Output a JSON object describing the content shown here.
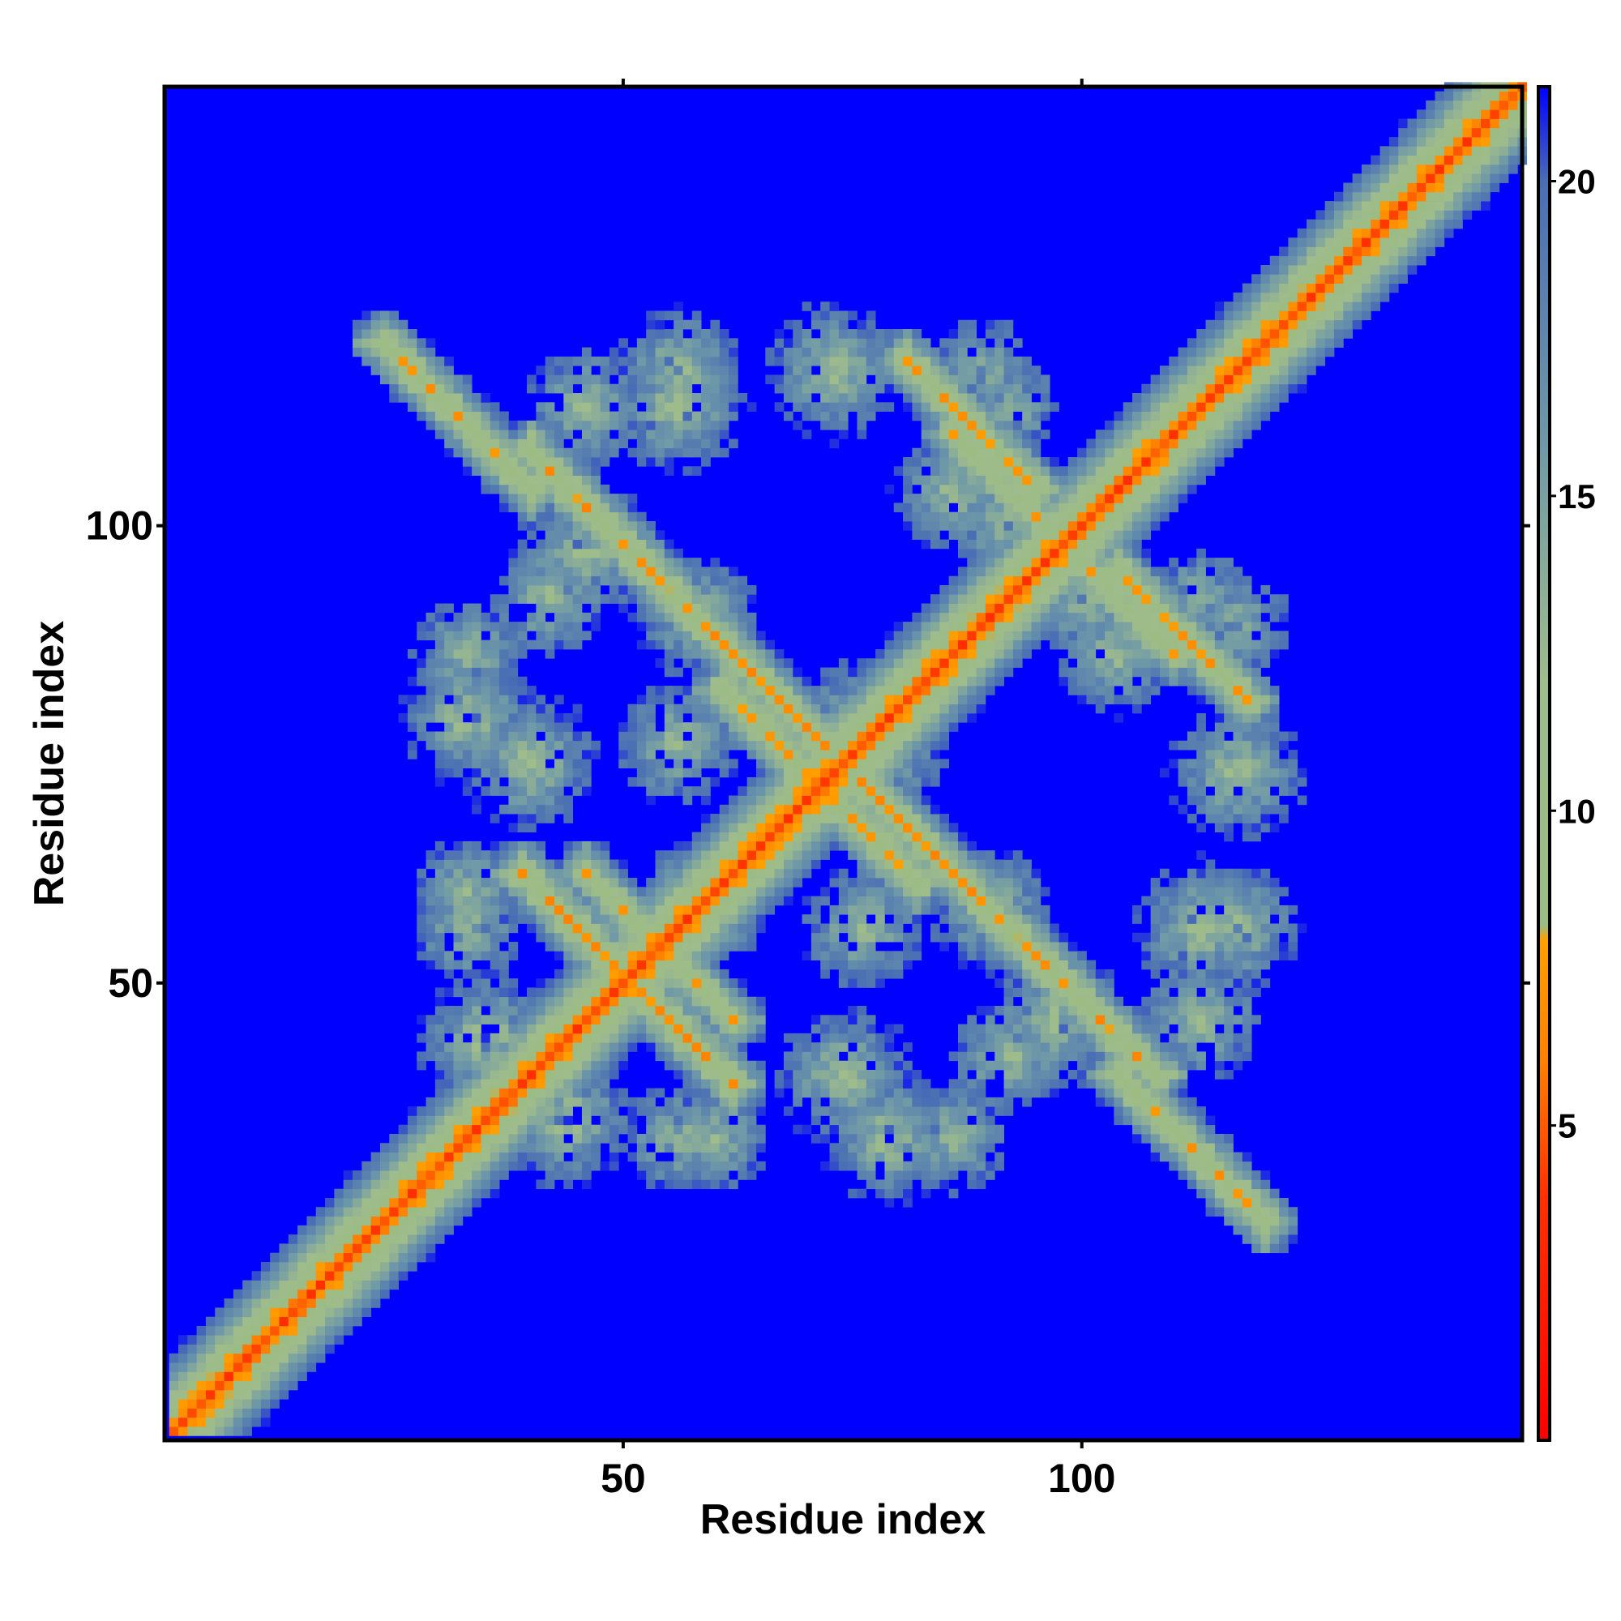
{
  "chart_data": {
    "type": "heatmap",
    "title": "",
    "xlabel": "Residue index",
    "ylabel": "Residue index",
    "xlim": [
      1,
      148
    ],
    "ylim": [
      1,
      148
    ],
    "x_ticks": [
      50,
      100
    ],
    "y_ticks": [
      50,
      100
    ],
    "grid": false,
    "matrix_size": 148,
    "colorbar": {
      "ticks": [
        5,
        10,
        15,
        20
      ],
      "range": [
        0,
        21.5
      ],
      "stops": [
        {
          "value": 0,
          "color": "#ff0000"
        },
        {
          "value": 4,
          "color": "#ff3000"
        },
        {
          "value": 6,
          "color": "#ff8000"
        },
        {
          "value": 8,
          "color": "#ffa000"
        },
        {
          "value": 8.1,
          "color": "#9cbc84"
        },
        {
          "value": 12,
          "color": "#9fbc8c"
        },
        {
          "value": 16,
          "color": "#6e98a8"
        },
        {
          "value": 20,
          "color": "#4a6eb4"
        },
        {
          "value": 21.5,
          "color": "#0000ff"
        }
      ]
    },
    "cutoff_value": 21,
    "background_color": "#0000ff",
    "contact_bands": [
      {
        "orientation": "diagonal",
        "offset": 0,
        "from": 1,
        "to": 148,
        "min_distance": 3.8,
        "slope": 1.9
      },
      {
        "orientation": "anti",
        "sum": 148,
        "from": 40,
        "to": 72,
        "min_distance": 6.0
      },
      {
        "orientation": "anti",
        "sum": 144,
        "from": 24,
        "to": 40,
        "min_distance": 6.5
      },
      {
        "orientation": "anti",
        "sum": 101,
        "from": 39,
        "to": 56,
        "min_distance": 6.0
      },
      {
        "orientation": "anti",
        "sum": 143,
        "from": 64,
        "to": 82,
        "min_distance": 6.5
      },
      {
        "orientation": "anti",
        "sum": 199,
        "from": 104,
        "to": 118,
        "min_distance": 6.5
      },
      {
        "orientation": "anti",
        "sum": 108,
        "from": 50,
        "to": 62,
        "min_distance": 7.0
      },
      {
        "orientation": "anti",
        "sum": 196,
        "from": 100,
        "to": 110,
        "min_distance": 7.0
      }
    ],
    "contact_blobs": [
      {
        "x": 33,
        "y": 79,
        "radius": 8,
        "min_distance": 9.5
      },
      {
        "x": 44,
        "y": 35,
        "radius": 8,
        "min_distance": 9.5
      },
      {
        "x": 56,
        "y": 117,
        "radius": 7,
        "min_distance": 10
      },
      {
        "x": 73,
        "y": 117,
        "radius": 8,
        "min_distance": 9.5
      },
      {
        "x": 89,
        "y": 117,
        "radius": 6,
        "min_distance": 11
      },
      {
        "x": 104,
        "y": 86,
        "radius": 7,
        "min_distance": 10
      },
      {
        "x": 113,
        "y": 56,
        "radius": 8,
        "min_distance": 9.5
      },
      {
        "x": 113,
        "y": 46,
        "radius": 7,
        "min_distance": 10
      },
      {
        "x": 74,
        "y": 40,
        "radius": 8,
        "min_distance": 9.5
      },
      {
        "x": 97,
        "y": 46,
        "radius": 9,
        "min_distance": 9.5
      },
      {
        "x": 56,
        "y": 76,
        "radius": 7,
        "min_distance": 10
      },
      {
        "x": 78,
        "y": 75,
        "radius": 9,
        "min_distance": 10
      },
      {
        "x": 90,
        "y": 58,
        "radius": 7,
        "min_distance": 10
      },
      {
        "x": 60,
        "y": 58,
        "radius": 6,
        "min_distance": 10.5
      },
      {
        "x": 42,
        "y": 92,
        "radius": 6,
        "min_distance": 10
      },
      {
        "x": 33,
        "y": 60,
        "radius": 6,
        "min_distance": 10.5
      },
      {
        "x": 56,
        "y": 33,
        "radius": 6,
        "min_distance": 10.5
      },
      {
        "x": 86,
        "y": 33,
        "radius": 6,
        "min_distance": 10.5
      },
      {
        "x": 92,
        "y": 100,
        "radius": 6,
        "min_distance": 10.5
      },
      {
        "x": 113,
        "y": 92,
        "radius": 5,
        "min_distance": 11
      }
    ]
  }
}
